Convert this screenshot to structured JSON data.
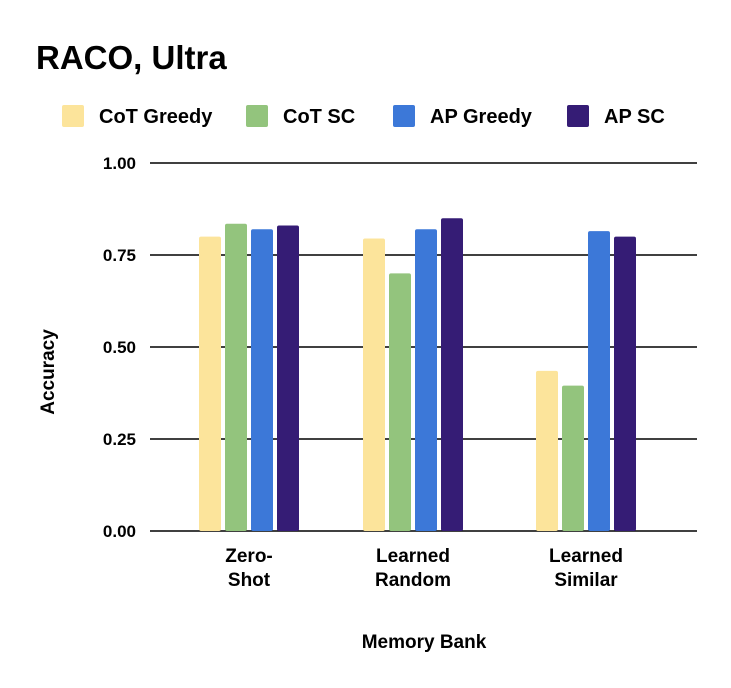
{
  "chart_data": {
    "type": "bar",
    "title": "RACO, Ultra",
    "xlabel": "Memory Bank",
    "ylabel": "Accuracy",
    "ylim": [
      0,
      1
    ],
    "yticks": [
      "0.00",
      "0.25",
      "0.50",
      "0.75",
      "1.00"
    ],
    "grid": true,
    "legend_position": "top",
    "categories": [
      [
        "Zero-",
        "Shot"
      ],
      [
        "Learned",
        "Random"
      ],
      [
        "Learned",
        "Similar"
      ]
    ],
    "series": [
      {
        "name": "CoT Greedy",
        "color": "#fce49b",
        "values": [
          0.8,
          0.795,
          0.435
        ]
      },
      {
        "name": "CoT SC",
        "color": "#93c47d",
        "values": [
          0.835,
          0.7,
          0.395
        ]
      },
      {
        "name": "AP Greedy",
        "color": "#3c78d8",
        "values": [
          0.82,
          0.82,
          0.815
        ]
      },
      {
        "name": "AP SC",
        "color": "#351c75",
        "values": [
          0.83,
          0.85,
          0.8
        ]
      }
    ]
  }
}
